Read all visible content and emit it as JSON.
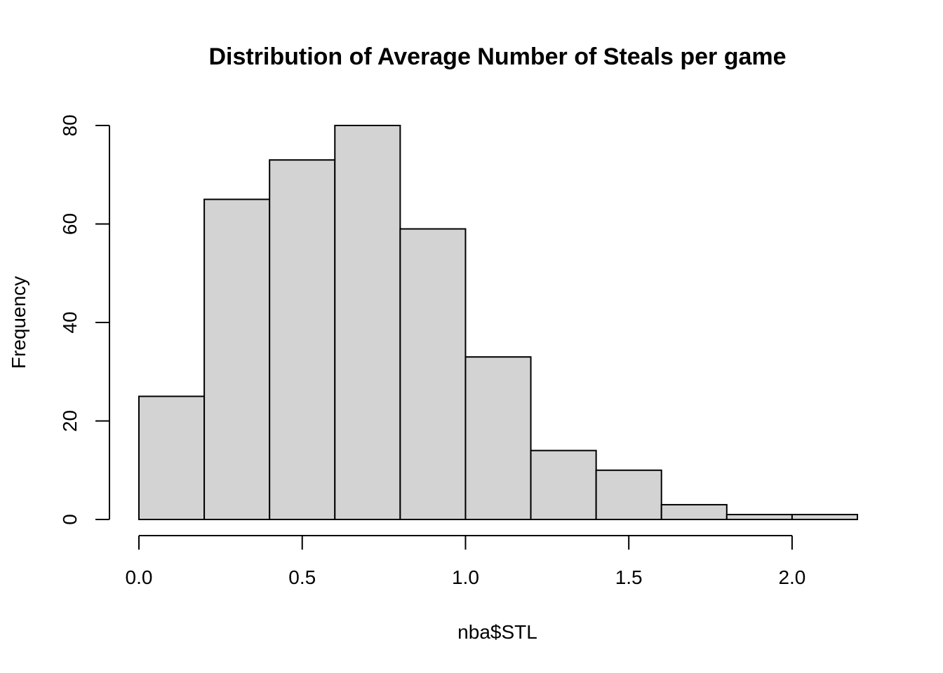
{
  "chart_data": {
    "type": "bar",
    "title": "Distribution of Average Number of Steals per game",
    "xlabel": "nba$STL",
    "ylabel": "Frequency",
    "bins": [
      {
        "start": 0.0,
        "end": 0.2,
        "count": 25
      },
      {
        "start": 0.2,
        "end": 0.4,
        "count": 65
      },
      {
        "start": 0.4,
        "end": 0.6,
        "count": 73
      },
      {
        "start": 0.6,
        "end": 0.8,
        "count": 80
      },
      {
        "start": 0.8,
        "end": 1.0,
        "count": 59
      },
      {
        "start": 1.0,
        "end": 1.2,
        "count": 33
      },
      {
        "start": 1.2,
        "end": 1.4,
        "count": 14
      },
      {
        "start": 1.4,
        "end": 1.6,
        "count": 10
      },
      {
        "start": 1.6,
        "end": 1.8,
        "count": 3
      },
      {
        "start": 1.8,
        "end": 2.0,
        "count": 1
      },
      {
        "start": 2.0,
        "end": 2.2,
        "count": 1
      }
    ],
    "x_ticks": [
      0.0,
      0.5,
      1.0,
      1.5,
      2.0
    ],
    "x_tick_labels": [
      "0.0",
      "0.5",
      "1.0",
      "1.5",
      "2.0"
    ],
    "y_ticks": [
      0,
      20,
      40,
      60,
      80
    ],
    "y_tick_labels": [
      "0",
      "20",
      "40",
      "60",
      "80"
    ],
    "xlim": [
      0.0,
      2.2
    ],
    "ylim": [
      0,
      80
    ],
    "bar_fill": "#d3d3d3",
    "bar_stroke": "#000000",
    "grid": false,
    "legend": "none"
  }
}
